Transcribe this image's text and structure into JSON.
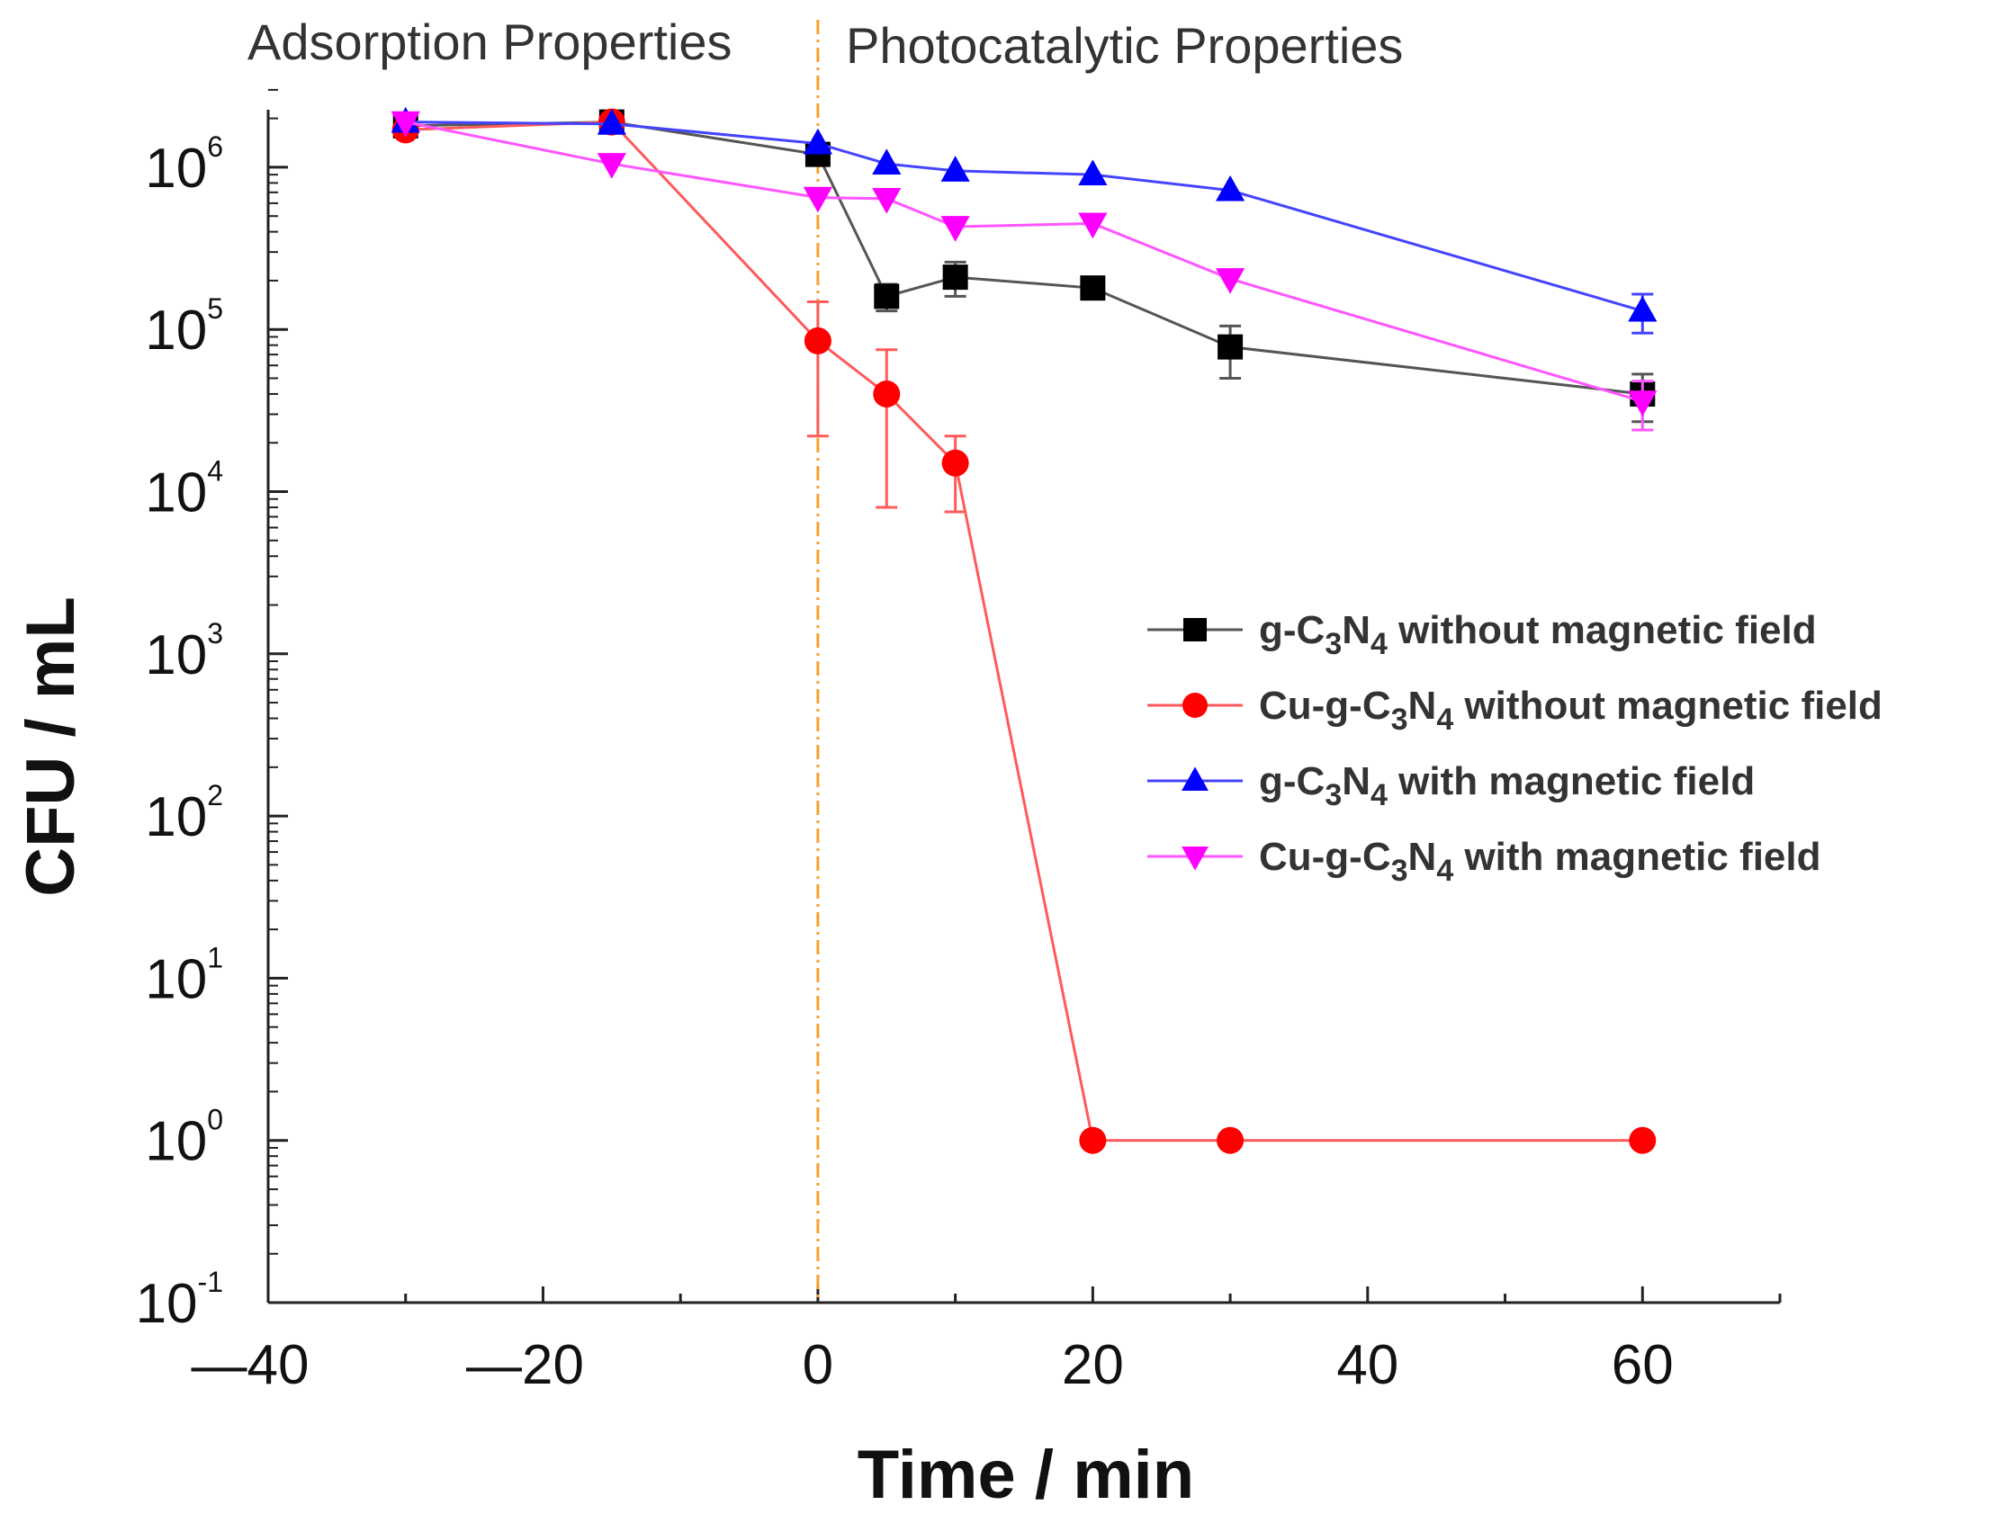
{
  "chart_data": {
    "type": "line",
    "y_scale": "log",
    "title": "",
    "xlabel": "Time / min",
    "ylabel": "CFU / mL",
    "xlim": [
      -40,
      70
    ],
    "ylim": [
      0.1,
      3000000
    ],
    "x_ticks": [
      {
        "value": -40,
        "label": "—40"
      },
      {
        "value": -20,
        "label": "—20"
      },
      {
        "value": 0,
        "label": "0"
      },
      {
        "value": 20,
        "label": "20"
      },
      {
        "value": 40,
        "label": "40"
      },
      {
        "value": 60,
        "label": "60"
      }
    ],
    "y_ticks": [
      {
        "value": 1000000,
        "base": "10",
        "exp": "6"
      },
      {
        "value": 100000,
        "base": "10",
        "exp": "5"
      },
      {
        "value": 10000,
        "base": "10",
        "exp": "4"
      },
      {
        "value": 1000,
        "base": "10",
        "exp": "3"
      },
      {
        "value": 100,
        "base": "10",
        "exp": "2"
      },
      {
        "value": 10,
        "base": "10",
        "exp": "1"
      },
      {
        "value": 1,
        "base": "10",
        "exp": "0"
      },
      {
        "value": 0.1,
        "base": "10",
        "exp": "-1"
      }
    ],
    "divider": {
      "x": 0,
      "color": "#f5a030"
    },
    "regions": {
      "left_label": "Adsorption Properties",
      "right_label": "Photocatalytic Properties"
    },
    "legend_position": "center-right",
    "series": [
      {
        "id": "gcn-no-field",
        "name_parts": [
          "g-C",
          "3",
          "N",
          "4",
          "  without magnetic field"
        ],
        "color": "#000000",
        "line_color": "#555555",
        "marker": "square",
        "points": [
          {
            "x": -30,
            "y": 1800000
          },
          {
            "x": -15,
            "y": 1900000
          },
          {
            "x": 0,
            "y": 1200000
          },
          {
            "x": 5,
            "y": 160000,
            "err_lo": 130000,
            "err_hi": 190000
          },
          {
            "x": 10,
            "y": 210000,
            "err_lo": 160000,
            "err_hi": 260000
          },
          {
            "x": 20,
            "y": 180000
          },
          {
            "x": 30,
            "y": 78000,
            "err_lo": 50000,
            "err_hi": 105000
          },
          {
            "x": 60,
            "y": 40000,
            "err_lo": 27000,
            "err_hi": 53000
          }
        ]
      },
      {
        "id": "cugcn-no-field",
        "name_parts": [
          "Cu-g-C",
          "3",
          "N",
          "4",
          "  without magnetic field"
        ],
        "color": "#ff0000",
        "line_color": "#ff5a5a",
        "marker": "circle",
        "points": [
          {
            "x": -30,
            "y": 1700000
          },
          {
            "x": -15,
            "y": 1900000
          },
          {
            "x": 0,
            "y": 85000,
            "err_lo": 22000,
            "err_hi": 148000
          },
          {
            "x": 5,
            "y": 40000,
            "err_lo": 8000,
            "err_hi": 75000
          },
          {
            "x": 10,
            "y": 15000,
            "err_lo": 7500,
            "err_hi": 22000
          },
          {
            "x": 20,
            "y": 1
          },
          {
            "x": 30,
            "y": 1
          },
          {
            "x": 60,
            "y": 1
          }
        ]
      },
      {
        "id": "gcn-field",
        "name_parts": [
          "g-C",
          "3",
          "N",
          "4",
          " with magnetic field"
        ],
        "color": "#0000ff",
        "line_color": "#4444ff",
        "marker": "triangle-up",
        "points": [
          {
            "x": -30,
            "y": 1900000
          },
          {
            "x": -15,
            "y": 1850000
          },
          {
            "x": 0,
            "y": 1400000
          },
          {
            "x": 5,
            "y": 1050000
          },
          {
            "x": 10,
            "y": 950000
          },
          {
            "x": 20,
            "y": 900000
          },
          {
            "x": 30,
            "y": 720000
          },
          {
            "x": 60,
            "y": 130000,
            "err_lo": 95000,
            "err_hi": 165000
          }
        ]
      },
      {
        "id": "cugcn-field",
        "name_parts": [
          "Cu-g-C",
          "3",
          "N",
          "4",
          " with magnetic field"
        ],
        "color": "#ff00ff",
        "line_color": "#ff55ff",
        "marker": "triangle-down",
        "points": [
          {
            "x": -30,
            "y": 1900000
          },
          {
            "x": -15,
            "y": 1050000
          },
          {
            "x": 0,
            "y": 650000
          },
          {
            "x": 5,
            "y": 640000
          },
          {
            "x": 10,
            "y": 430000
          },
          {
            "x": 20,
            "y": 450000
          },
          {
            "x": 30,
            "y": 205000
          },
          {
            "x": 60,
            "y": 36000,
            "err_lo": 24000,
            "err_hi": 48000
          }
        ]
      }
    ]
  }
}
